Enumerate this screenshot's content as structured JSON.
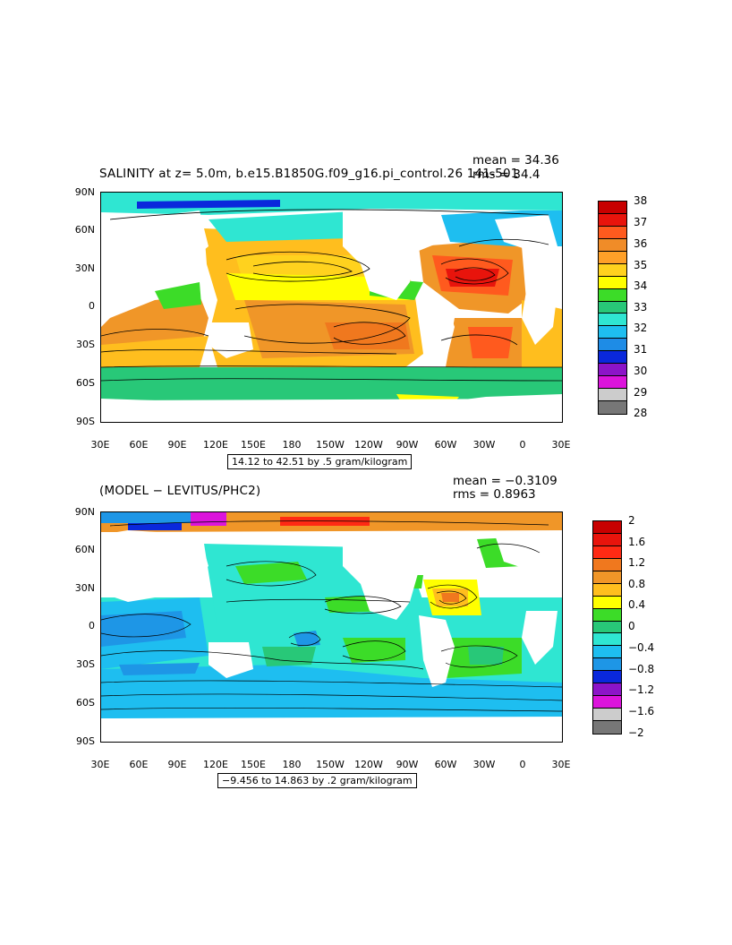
{
  "panels": [
    {
      "title": "SALINITY at z=    5.0m, b.e15.B1850G.f09_g16.pi_control.26 141-501",
      "mean_label": "mean = 34.36",
      "rms_label": "rms = 34.4",
      "range_label": "14.12 to 42.51 by .5 gram/kilogram",
      "lat_ticks": [
        "90N",
        "60N",
        "30N",
        "0",
        "30S",
        "60S",
        "90S"
      ],
      "lon_ticks": [
        "30E",
        "60E",
        "90E",
        "120E",
        "150E",
        "180",
        "150W",
        "120W",
        "90W",
        "60W",
        "30W",
        "0",
        "30E"
      ],
      "colorbar": {
        "labels": [
          "38",
          "37",
          "36",
          "35",
          "34",
          "33",
          "32",
          "31",
          "30",
          "29",
          "28"
        ],
        "colors": [
          "#c80000",
          "#e8140c",
          "#ff5a1e",
          "#f08c28",
          "#ffa028",
          "#ffd21e",
          "#ffff00",
          "#3cdc28",
          "#28c878",
          "#2fe6d2",
          "#1ebef0",
          "#1e8ce6",
          "#0a28dc",
          "#8c14c8",
          "#dc14dc",
          "#cccccc",
          "#777777"
        ]
      }
    },
    {
      "title": "(MODEL − LEVITUS/PHC2)",
      "mean_label": "mean = −0.3109",
      "rms_label": "rms = 0.8963",
      "range_label": "−9.456 to 14.863 by .2 gram/kilogram",
      "lat_ticks": [
        "90N",
        "60N",
        "30N",
        "0",
        "30S",
        "60S",
        "90S"
      ],
      "lon_ticks": [
        "30E",
        "60E",
        "90E",
        "120E",
        "150E",
        "180",
        "150W",
        "120W",
        "90W",
        "60W",
        "30W",
        "0",
        "30E"
      ],
      "colorbar": {
        "labels": [
          "2",
          "1.6",
          "1.2",
          "0.8",
          "0.4",
          "0",
          "−0.4",
          "−0.8",
          "−1.2",
          "−1.6",
          "−2"
        ],
        "colors": [
          "#c80000",
          "#e8140c",
          "#ff2a14",
          "#f0781e",
          "#f09628",
          "#ffbe1e",
          "#ffff00",
          "#3cdc28",
          "#28c878",
          "#2fe6d2",
          "#1ebef0",
          "#1e96e6",
          "#0a28dc",
          "#8c14c8",
          "#dc14dc",
          "#cccccc",
          "#777777"
        ]
      }
    }
  ]
}
